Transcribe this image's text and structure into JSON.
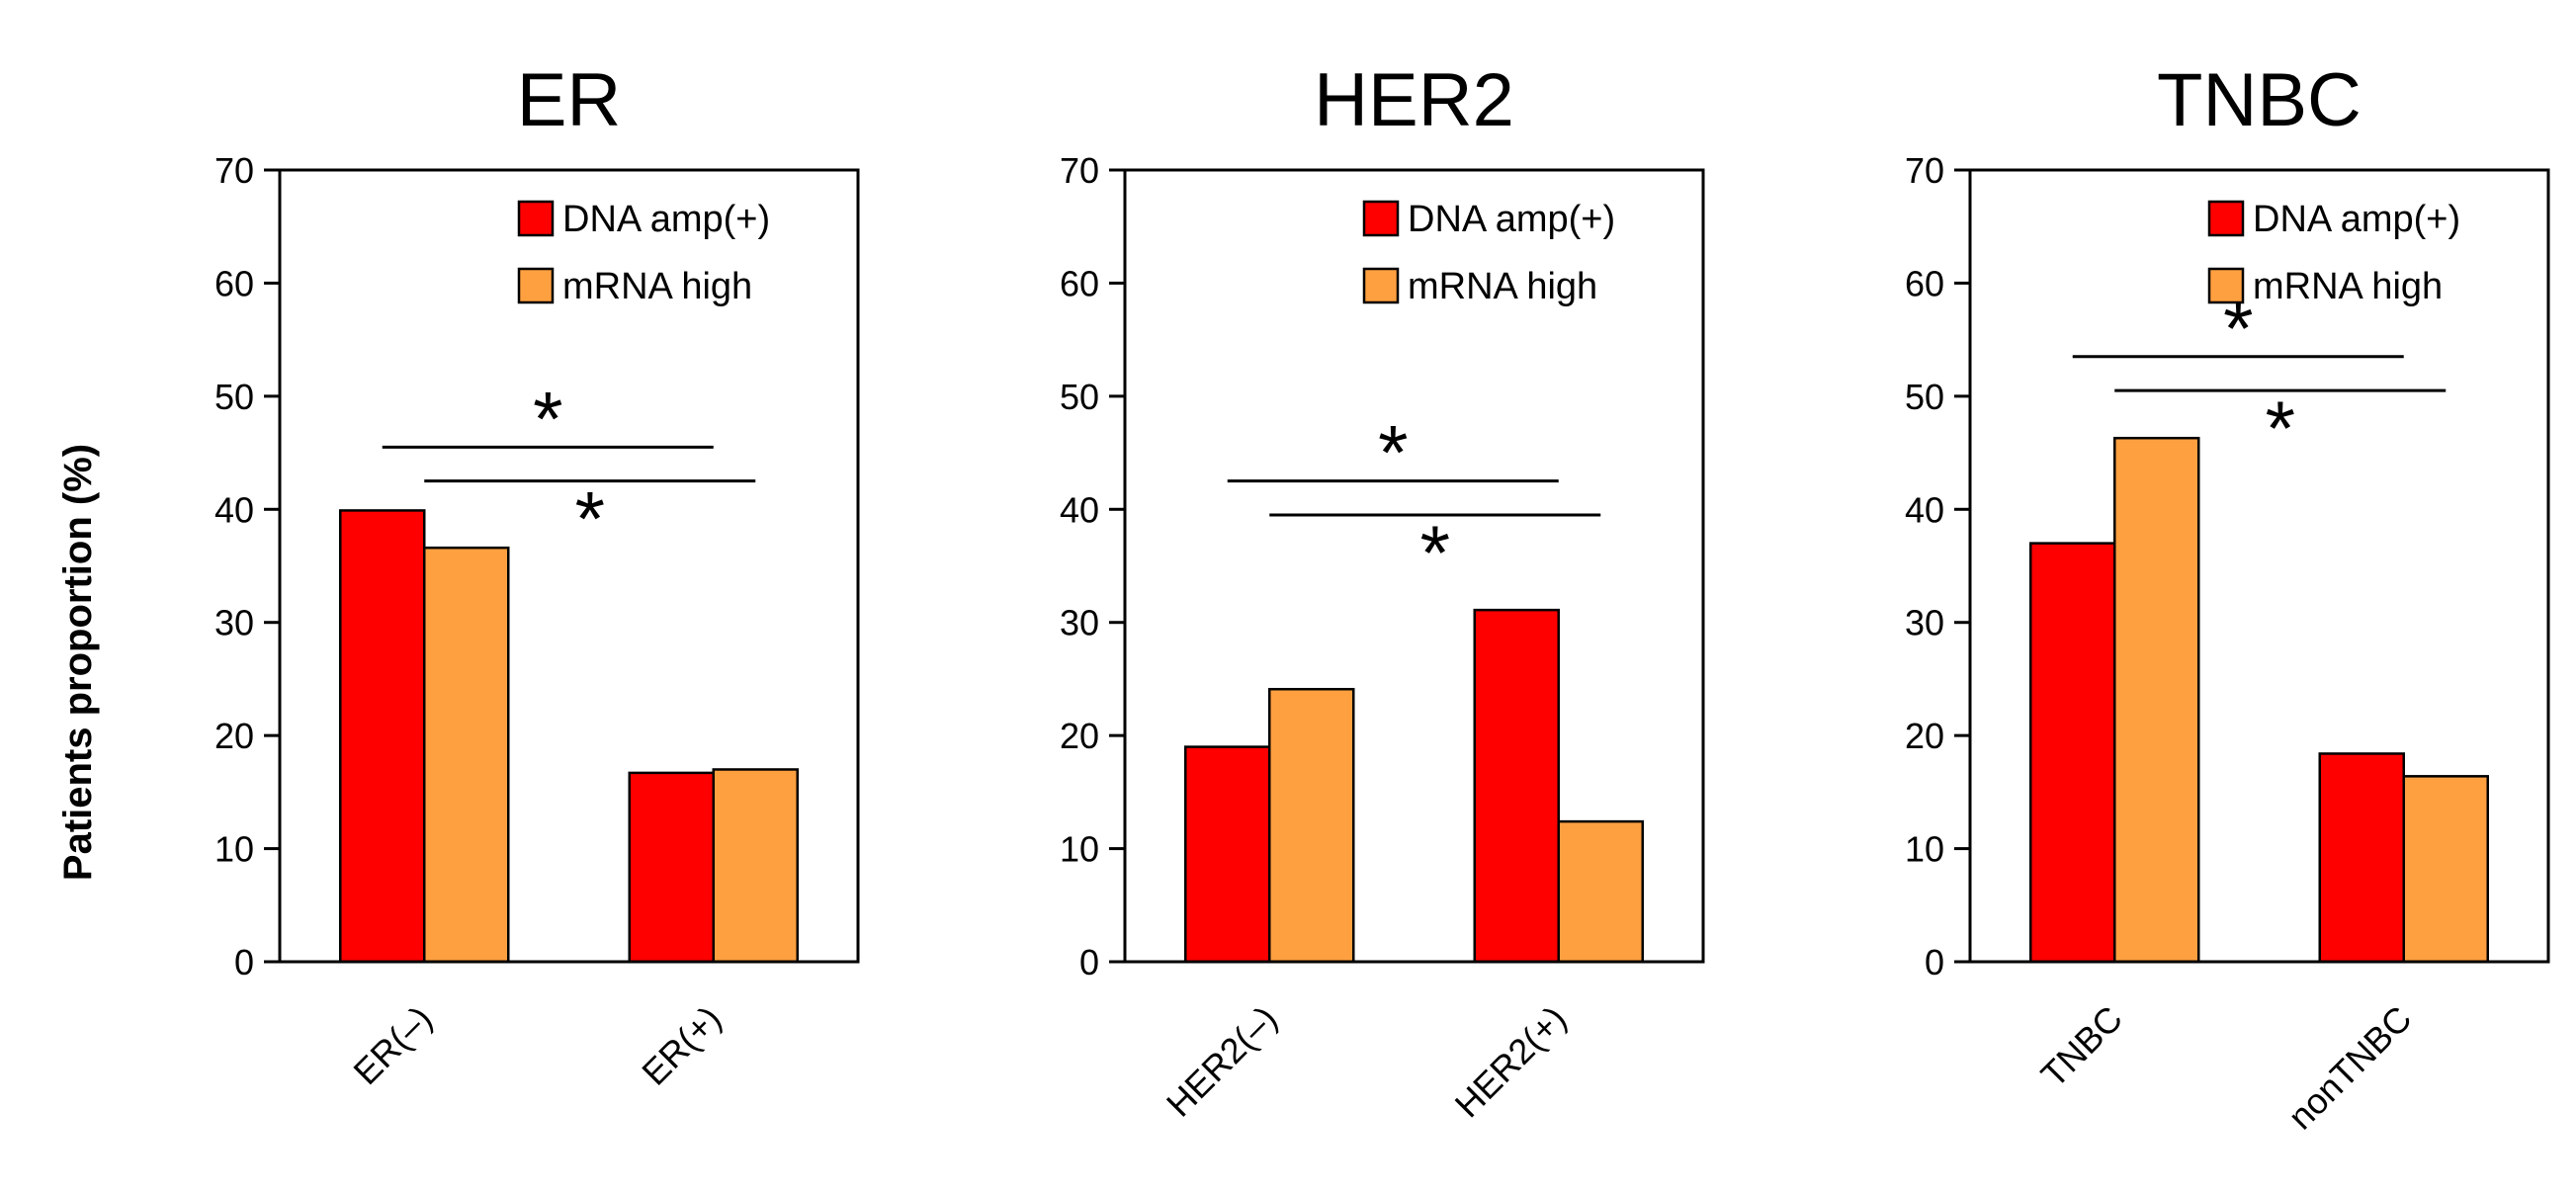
{
  "figure": {
    "ylabel": "Patients proportion (%)"
  },
  "colors": {
    "dna": "#ff0000",
    "mrna": "#ffa040"
  },
  "chart_data": [
    {
      "type": "bar",
      "title": "ER",
      "categories": [
        "ER(–)",
        "ER(+)"
      ],
      "series": [
        {
          "name": "DNA amp(+)",
          "values": [
            39.9,
            16.7
          ]
        },
        {
          "name": "mRNA high",
          "values": [
            36.6,
            17.0
          ]
        }
      ],
      "ylim": [
        0,
        70
      ],
      "yticks": [
        0,
        10,
        20,
        30,
        40,
        50,
        60,
        70
      ],
      "ylabel": "Patients proportion (%)",
      "legend": "top-right",
      "significance": [
        {
          "label": "*",
          "from": 0,
          "to": 1,
          "series": 0,
          "y": 45.5
        },
        {
          "label": "*",
          "from": 0,
          "to": 1,
          "series": 1,
          "y": 42.5
        }
      ]
    },
    {
      "type": "bar",
      "title": "HER2",
      "categories": [
        "HER2(–)",
        "HER2(+)"
      ],
      "series": [
        {
          "name": "DNA amp(+)",
          "values": [
            19.0,
            31.1
          ]
        },
        {
          "name": "mRNA high",
          "values": [
            24.1,
            12.4
          ]
        }
      ],
      "ylim": [
        0,
        70
      ],
      "yticks": [
        0,
        10,
        20,
        30,
        40,
        50,
        60,
        70
      ],
      "ylabel": "",
      "legend": "top-right",
      "significance": [
        {
          "label": "*",
          "from": 0,
          "to": 1,
          "series": 0,
          "y": 42.5
        },
        {
          "label": "*",
          "from": 0,
          "to": 1,
          "series": 1,
          "y": 39.5
        }
      ]
    },
    {
      "type": "bar",
      "title": "TNBC",
      "categories": [
        "TNBC",
        "nonTNBC"
      ],
      "series": [
        {
          "name": "DNA amp(+)",
          "values": [
            37.0,
            18.4
          ]
        },
        {
          "name": "mRNA high",
          "values": [
            46.3,
            16.4
          ]
        }
      ],
      "ylim": [
        0,
        70
      ],
      "yticks": [
        0,
        10,
        20,
        30,
        40,
        50,
        60,
        70
      ],
      "ylabel": "",
      "legend": "top-right",
      "significance": [
        {
          "label": "*",
          "from": 0,
          "to": 1,
          "series": 0,
          "y": 53.5
        },
        {
          "label": "*",
          "from": 0,
          "to": 1,
          "series": 1,
          "y": 50.5
        }
      ]
    }
  ]
}
